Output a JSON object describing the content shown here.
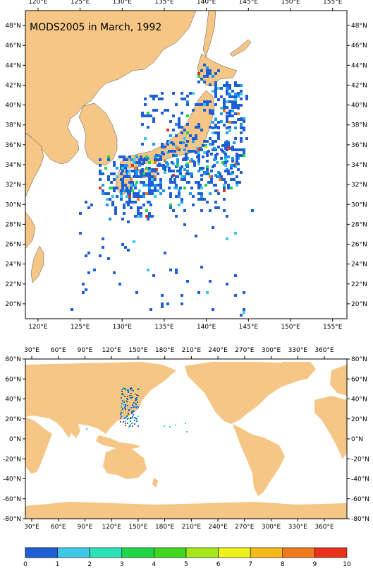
{
  "top_map": {
    "title": "MODS2005 in March, 1992",
    "lon_ticks": [
      "120°E",
      "125°E",
      "130°E",
      "135°E",
      "140°E",
      "145°E",
      "150°E",
      "155°E"
    ],
    "lat_ticks": [
      "48°N",
      "46°N",
      "44°N",
      "42°N",
      "40°N",
      "38°N",
      "36°N",
      "34°N",
      "32°N",
      "30°N",
      "28°N",
      "26°N",
      "24°N",
      "22°N",
      "20°N"
    ]
  },
  "bottom_map": {
    "lon_ticks": [
      "30°E",
      "60°E",
      "90°E",
      "120°E",
      "150°E",
      "180°E",
      "210°E",
      "240°E",
      "270°E",
      "300°E",
      "330°E",
      "360°E"
    ],
    "lat_ticks": [
      "80°N",
      "60°N",
      "40°N",
      "20°N",
      "0°N",
      "-20°N",
      "-40°N",
      "-60°N",
      "-80°N"
    ]
  },
  "colorbar": {
    "labels": [
      "0",
      "1",
      "2",
      "3",
      "4",
      "5",
      "6",
      "7",
      "8",
      "9",
      "10"
    ],
    "colors": [
      "#1f5fd6",
      "#1a9bf0",
      "#3dc8e8",
      "#2ee0b8",
      "#21d646",
      "#3fd81e",
      "#a6e81c",
      "#f0f01a",
      "#f5b91c",
      "#f07a1c",
      "#e8321a"
    ]
  },
  "colors": {
    "land": "#f5c686",
    "ocean": "#ffffff",
    "frame": "#000000"
  }
}
